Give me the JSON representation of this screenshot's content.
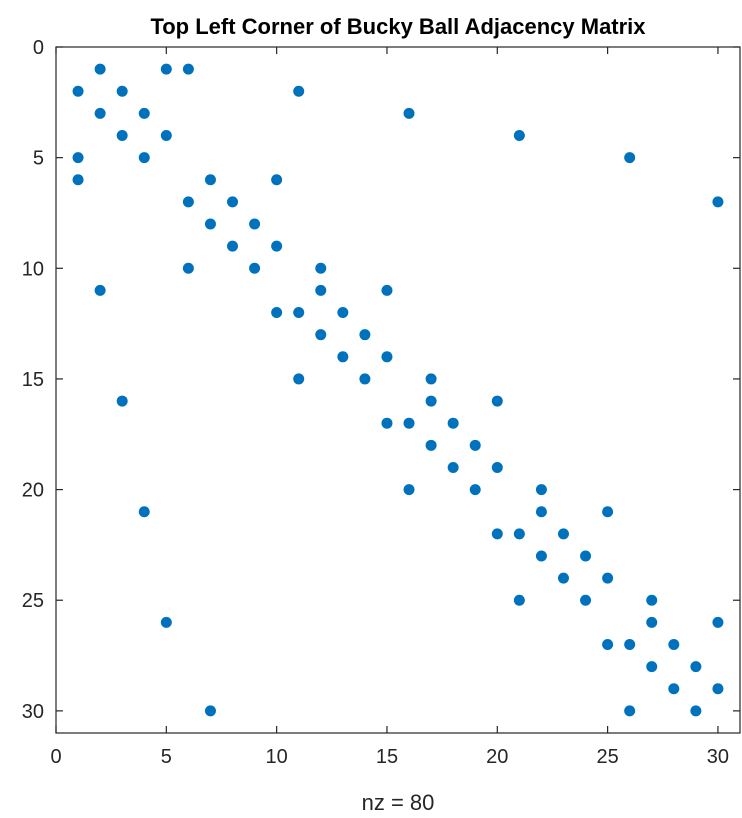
{
  "chart_data": {
    "type": "scatter",
    "title": "Top Left Corner of Bucky Ball Adjacency Matrix",
    "xlabel": "nz = 80",
    "ylabel": "",
    "xlim": [
      0,
      31
    ],
    "ylim": [
      31,
      0
    ],
    "y_axis_reversed": true,
    "grid": false,
    "marker_color": "#0072BD",
    "xticks": [
      0,
      5,
      10,
      15,
      20,
      25,
      30
    ],
    "yticks": [
      0,
      5,
      10,
      15,
      20,
      25,
      30
    ],
    "points": [
      [
        2,
        1
      ],
      [
        5,
        1
      ],
      [
        6,
        1
      ],
      [
        1,
        2
      ],
      [
        3,
        2
      ],
      [
        11,
        2
      ],
      [
        2,
        3
      ],
      [
        4,
        3
      ],
      [
        16,
        3
      ],
      [
        3,
        4
      ],
      [
        5,
        4
      ],
      [
        21,
        4
      ],
      [
        1,
        5
      ],
      [
        4,
        5
      ],
      [
        26,
        5
      ],
      [
        1,
        6
      ],
      [
        7,
        6
      ],
      [
        10,
        6
      ],
      [
        6,
        7
      ],
      [
        8,
        7
      ],
      [
        30,
        7
      ],
      [
        7,
        8
      ],
      [
        9,
        8
      ],
      [
        8,
        9
      ],
      [
        10,
        9
      ],
      [
        6,
        10
      ],
      [
        9,
        10
      ],
      [
        12,
        10
      ],
      [
        2,
        11
      ],
      [
        12,
        11
      ],
      [
        15,
        11
      ],
      [
        10,
        12
      ],
      [
        11,
        12
      ],
      [
        13,
        12
      ],
      [
        12,
        13
      ],
      [
        14,
        13
      ],
      [
        13,
        14
      ],
      [
        15,
        14
      ],
      [
        11,
        15
      ],
      [
        14,
        15
      ],
      [
        17,
        15
      ],
      [
        17,
        16
      ],
      [
        20,
        16
      ],
      [
        3,
        16
      ],
      [
        15,
        17
      ],
      [
        16,
        17
      ],
      [
        18,
        17
      ],
      [
        17,
        18
      ],
      [
        19,
        18
      ],
      [
        18,
        19
      ],
      [
        20,
        19
      ],
      [
        16,
        20
      ],
      [
        19,
        20
      ],
      [
        22,
        20
      ],
      [
        4,
        21
      ],
      [
        22,
        21
      ],
      [
        25,
        21
      ],
      [
        20,
        22
      ],
      [
        21,
        22
      ],
      [
        23,
        22
      ],
      [
        22,
        23
      ],
      [
        24,
        23
      ],
      [
        23,
        24
      ],
      [
        25,
        24
      ],
      [
        21,
        25
      ],
      [
        24,
        25
      ],
      [
        27,
        25
      ],
      [
        5,
        26
      ],
      [
        27,
        26
      ],
      [
        30,
        26
      ],
      [
        25,
        27
      ],
      [
        26,
        27
      ],
      [
        28,
        27
      ],
      [
        27,
        28
      ],
      [
        29,
        28
      ],
      [
        28,
        29
      ],
      [
        30,
        29
      ],
      [
        7,
        30
      ],
      [
        26,
        30
      ],
      [
        29,
        30
      ]
    ]
  }
}
